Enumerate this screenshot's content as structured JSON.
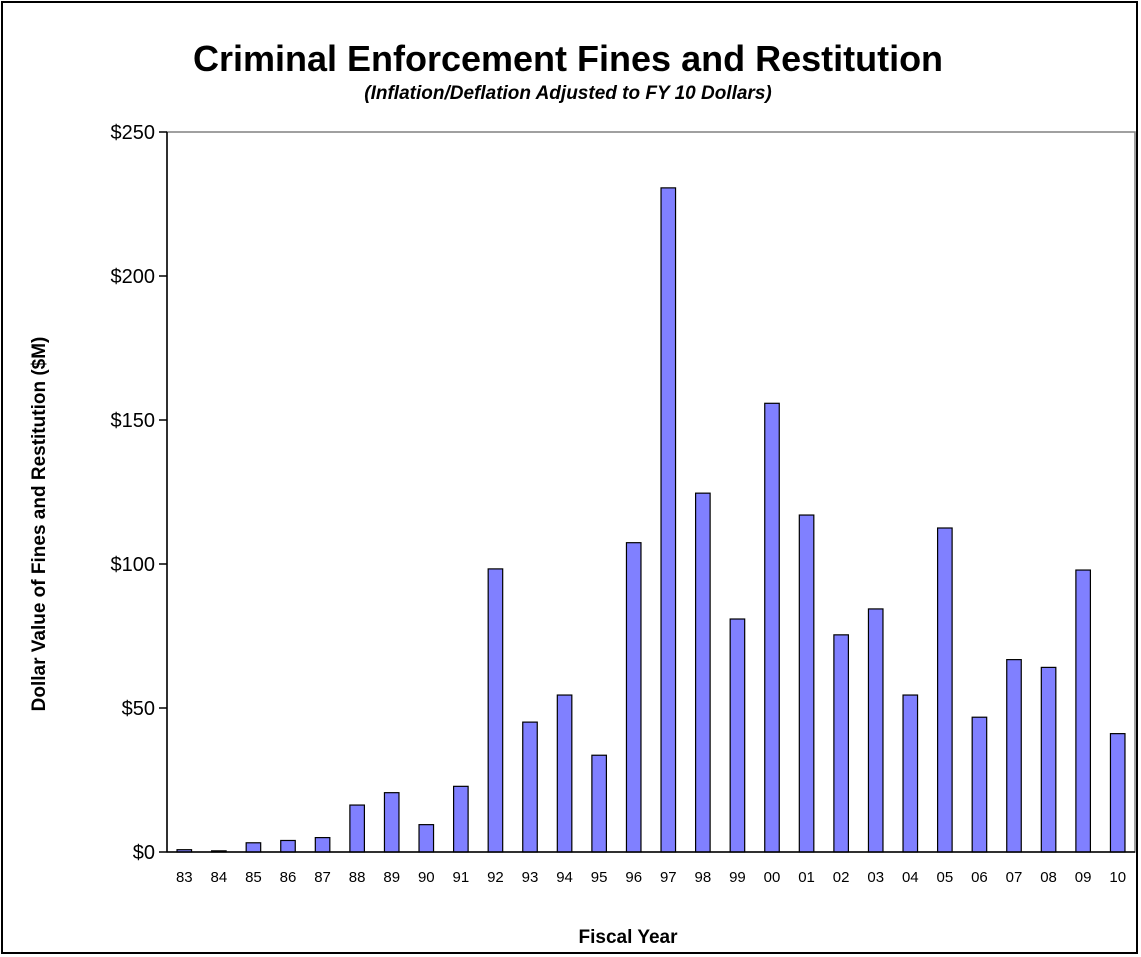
{
  "chart_data": {
    "type": "bar",
    "title": "Criminal Enforcement Fines and Restitution",
    "subtitle": "(Inflation/Deflation Adjusted to FY 10 Dollars)",
    "xlabel": "Fiscal Year",
    "ylabel": "Dollar Value of Fines and Restitution ($M)",
    "ylim": [
      0,
      250
    ],
    "yticks": [
      0,
      50,
      100,
      150,
      200,
      250
    ],
    "ytick_labels": [
      "$0",
      "$50",
      "$100",
      "$150",
      "$200",
      "$250"
    ],
    "categories": [
      "83",
      "84",
      "85",
      "86",
      "87",
      "88",
      "89",
      "90",
      "91",
      "92",
      "93",
      "94",
      "95",
      "96",
      "97",
      "98",
      "99",
      "00",
      "01",
      "02",
      "03",
      "04",
      "05",
      "06",
      "07",
      "08",
      "09",
      "10"
    ],
    "values": [
      0.8,
      0.4,
      3.2,
      4.0,
      5.0,
      16.3,
      20.6,
      9.5,
      22.8,
      98.3,
      45.1,
      54.5,
      33.6,
      107.4,
      230.6,
      124.6,
      80.9,
      155.8,
      117.0,
      75.4,
      84.4,
      54.5,
      112.5,
      46.8,
      66.8,
      64.1,
      97.9,
      41.1
    ],
    "bar_color": "#8080ff",
    "bar_edge_color": "#000000",
    "grid": false,
    "legend": "none"
  }
}
